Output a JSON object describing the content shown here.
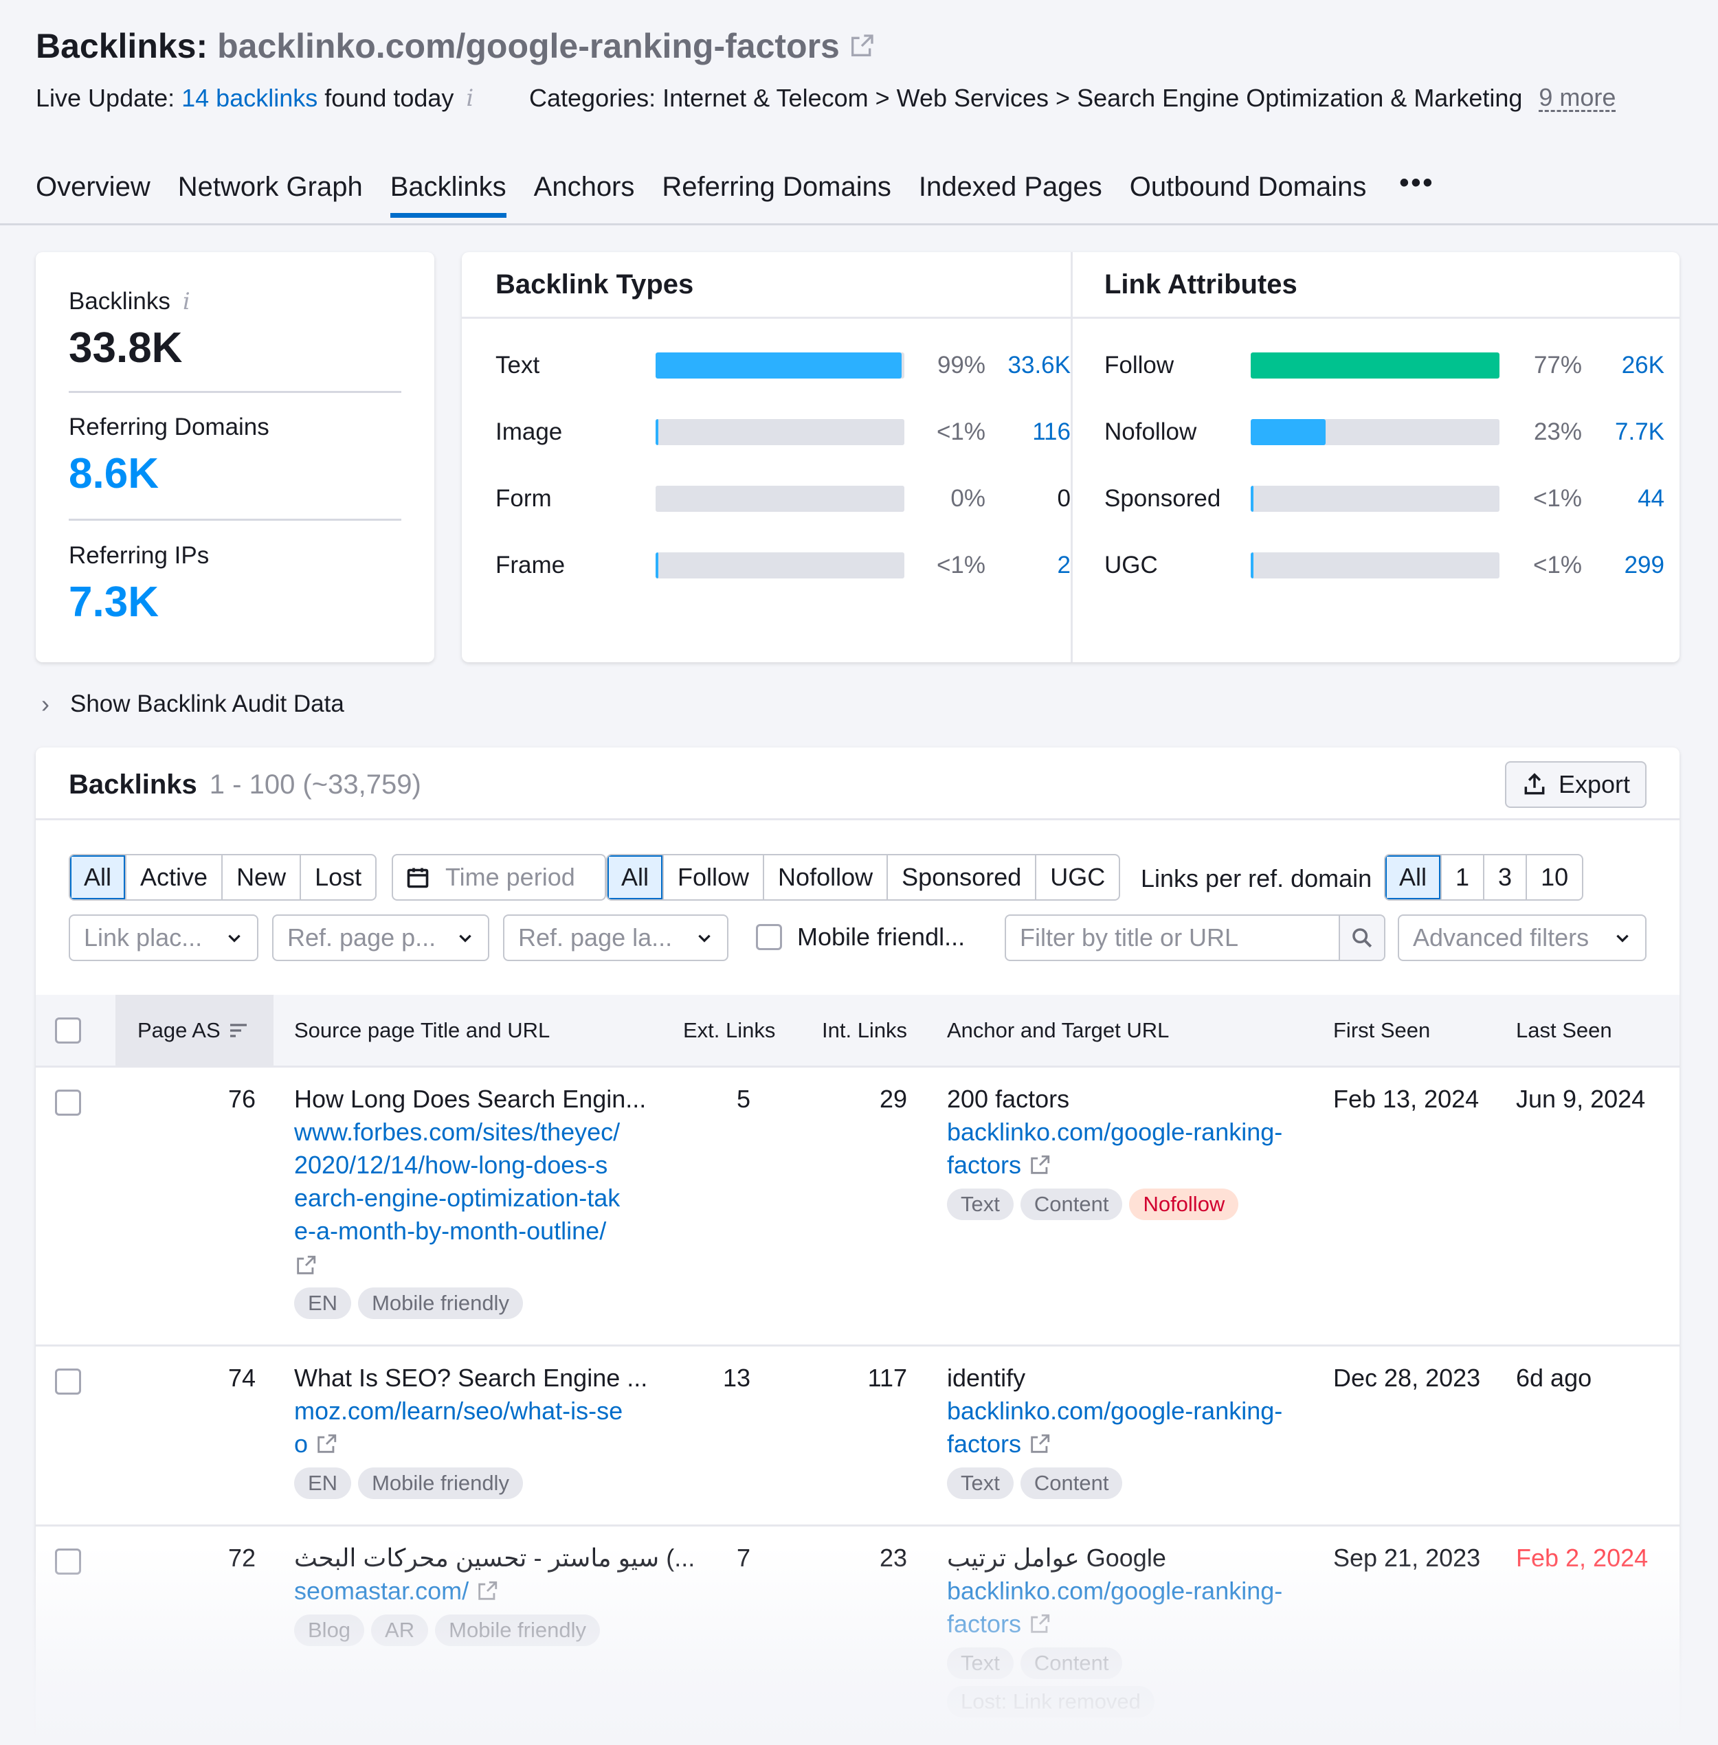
{
  "header": {
    "title_prefix": "Backlinks:",
    "domain": "backlinko.com/google-ranking-factors",
    "live_label": "Live Update:",
    "live_link": "14 backlinks",
    "live_suffix": "found today",
    "categories": "Categories: Internet & Telecom > Web Services > Search Engine Optimization & Marketing",
    "more": "9 more"
  },
  "tabs": [
    "Overview",
    "Network Graph",
    "Backlinks",
    "Anchors",
    "Referring Domains",
    "Indexed Pages",
    "Outbound Domains"
  ],
  "tabs_more": "•••",
  "active_tab": "Backlinks",
  "kpis": {
    "backlinks_label": "Backlinks",
    "backlinks_value": "33.8K",
    "ref_domains_label": "Referring Domains",
    "ref_domains_value": "8.6K",
    "ref_ips_label": "Referring IPs",
    "ref_ips_value": "7.3K"
  },
  "backlink_types": {
    "title": "Backlink Types",
    "rows": [
      {
        "label": "Text",
        "pct": "99%",
        "count": "33.6K",
        "fill": 0.99,
        "color": "#2bb0ff",
        "link": true
      },
      {
        "label": "Image",
        "pct": "<1%",
        "count": "116",
        "fill": 0.01,
        "color": "#2bb0ff",
        "link": true
      },
      {
        "label": "Form",
        "pct": "0%",
        "count": "0",
        "fill": 0,
        "color": "#2bb0ff",
        "link": false
      },
      {
        "label": "Frame",
        "pct": "<1%",
        "count": "2",
        "fill": 0.01,
        "color": "#2bb0ff",
        "link": true
      }
    ]
  },
  "link_attributes": {
    "title": "Link Attributes",
    "rows": [
      {
        "label": "Follow",
        "pct": "77%",
        "count": "26K",
        "fill": 1.0,
        "color": "#00c28f",
        "link": true
      },
      {
        "label": "Nofollow",
        "pct": "23%",
        "count": "7.7K",
        "fill": 0.3,
        "color": "#2bb0ff",
        "link": true
      },
      {
        "label": "Sponsored",
        "pct": "<1%",
        "count": "44",
        "fill": 0.01,
        "color": "#2bb0ff",
        "link": true
      },
      {
        "label": "UGC",
        "pct": "<1%",
        "count": "299",
        "fill": 0.01,
        "color": "#2bb0ff",
        "link": true
      }
    ]
  },
  "show_audit": "Show Backlink Audit Data",
  "table": {
    "title": "Backlinks",
    "range": "1 - 100 (~33,759)",
    "export": "Export",
    "status_filters": [
      "All",
      "Active",
      "New",
      "Lost"
    ],
    "time_period": "Time period",
    "type_filters": [
      "All",
      "Follow",
      "Nofollow",
      "Sponsored",
      "UGC"
    ],
    "links_per_domain_label": "Links per ref. domain",
    "links_per_domain": [
      "All",
      "1",
      "3",
      "10"
    ],
    "dropdowns": [
      "Link plac...",
      "Ref. page p...",
      "Ref. page la..."
    ],
    "mobile_friendly": "Mobile friendl...",
    "search_placeholder": "Filter by title or URL",
    "advanced_filters": "Advanced filters",
    "columns": [
      "Page AS",
      "Source page Title and URL",
      "Ext. Links",
      "Int. Links",
      "Anchor and Target URL",
      "First Seen",
      "Last Seen"
    ],
    "rows": [
      {
        "page_as": "76",
        "title": "How Long Does Search Engin...",
        "url_lines": [
          "www.forbes.com/sites/theyec/",
          "2020/12/14/how-long-does-s",
          "earch-engine-optimization-tak",
          "e-a-month-by-month-outline/"
        ],
        "source_tags": [
          "EN",
          "Mobile friendly"
        ],
        "ext": "5",
        "int": "29",
        "anchor": "200 factors",
        "target_lines": [
          "backlinko.com/google-ranking-",
          "factors"
        ],
        "anchor_tags": [
          "Text",
          "Content",
          "Nofollow"
        ],
        "first_seen": "Feb 13, 2024",
        "last_seen": "Jun 9, 2024"
      },
      {
        "page_as": "74",
        "title": "What Is SEO? Search Engine ...",
        "url_lines": [
          "moz.com/learn/seo/what-is-se",
          "o"
        ],
        "source_tags": [
          "EN",
          "Mobile friendly"
        ],
        "ext": "13",
        "int": "117",
        "anchor": "identify",
        "target_lines": [
          "backlinko.com/google-ranking-",
          "factors"
        ],
        "anchor_tags": [
          "Text",
          "Content"
        ],
        "first_seen": "Dec 28, 2023",
        "last_seen": "6d ago"
      },
      {
        "page_as": "72",
        "title": "سيو ماستر - تحسين محركات البحث (...",
        "url_lines": [
          "seomastar.com/"
        ],
        "source_tags": [
          "Blog",
          "AR",
          "Mobile friendly"
        ],
        "ext": "7",
        "int": "23",
        "anchor": "عوامل ترتيب Google",
        "target_lines": [
          "backlinko.com/google-ranking-",
          "factors"
        ],
        "anchor_tags": [
          "Text",
          "Content"
        ],
        "lost_note": "Lost: Link removed",
        "first_seen": "Sep 21, 2023",
        "last_seen": "Feb 2, 2024"
      }
    ]
  }
}
